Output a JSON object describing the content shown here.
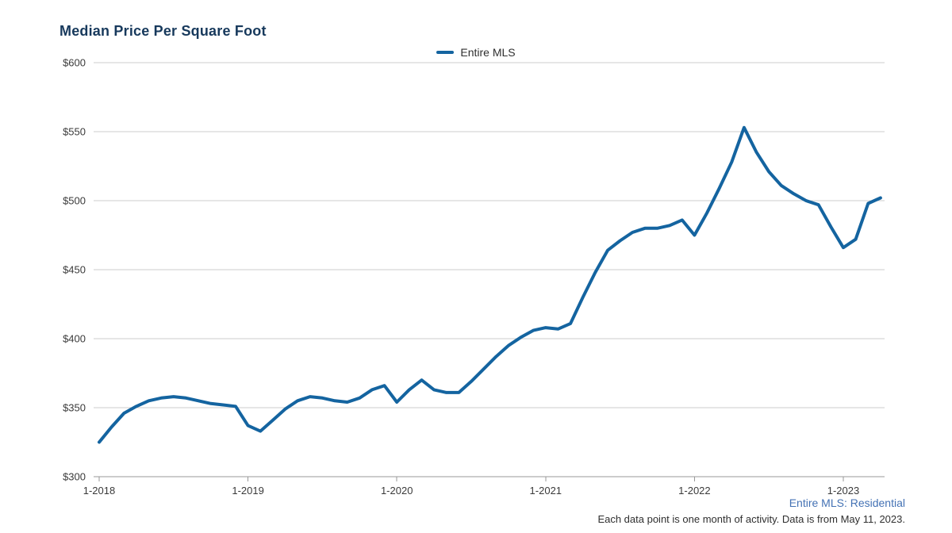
{
  "page": {
    "title": "Median Price Per Square Foot",
    "footer": {
      "source_label": "Entire MLS: Residential",
      "note": "Each data point is one month of activity. Data is from May 11, 2023."
    }
  },
  "legend": {
    "items": [
      {
        "label": "Entire MLS"
      }
    ]
  },
  "colors": {
    "line": "#1464a0",
    "title": "#17395c",
    "footer_link": "#4472b4",
    "grid": "#cccccc",
    "axis": "#999999",
    "tick_label": "#3a3a3a"
  },
  "chart_data": {
    "type": "line",
    "title": "Median Price Per Square Foot",
    "legend_entries": [
      "Entire MLS"
    ],
    "legend_position": "top-center",
    "grid": "horizontal",
    "x_unit": "month",
    "x_tick_labels": [
      "1-2018",
      "1-2019",
      "1-2020",
      "1-2021",
      "1-2022",
      "1-2023"
    ],
    "x_tick_month_indices": [
      0,
      12,
      24,
      36,
      48,
      60
    ],
    "y_tick_labels": [
      "$300",
      "$350",
      "$400",
      "$450",
      "$500",
      "$550",
      "$600"
    ],
    "ylim": [
      300,
      600
    ],
    "series": [
      {
        "name": "Entire MLS",
        "start": "1-2018",
        "end": "4-2023",
        "values": [
          325,
          336,
          346,
          351,
          355,
          357,
          358,
          357,
          355,
          353,
          352,
          351,
          337,
          333,
          341,
          349,
          355,
          358,
          357,
          355,
          354,
          357,
          363,
          366,
          354,
          363,
          370,
          363,
          361,
          361,
          369,
          378,
          387,
          395,
          401,
          406,
          408,
          407,
          411,
          430,
          448,
          464,
          471,
          477,
          480,
          480,
          482,
          486,
          475,
          491,
          509,
          528,
          553,
          535,
          521,
          511,
          505,
          500,
          497,
          481,
          466,
          472,
          498,
          502
        ]
      }
    ]
  }
}
